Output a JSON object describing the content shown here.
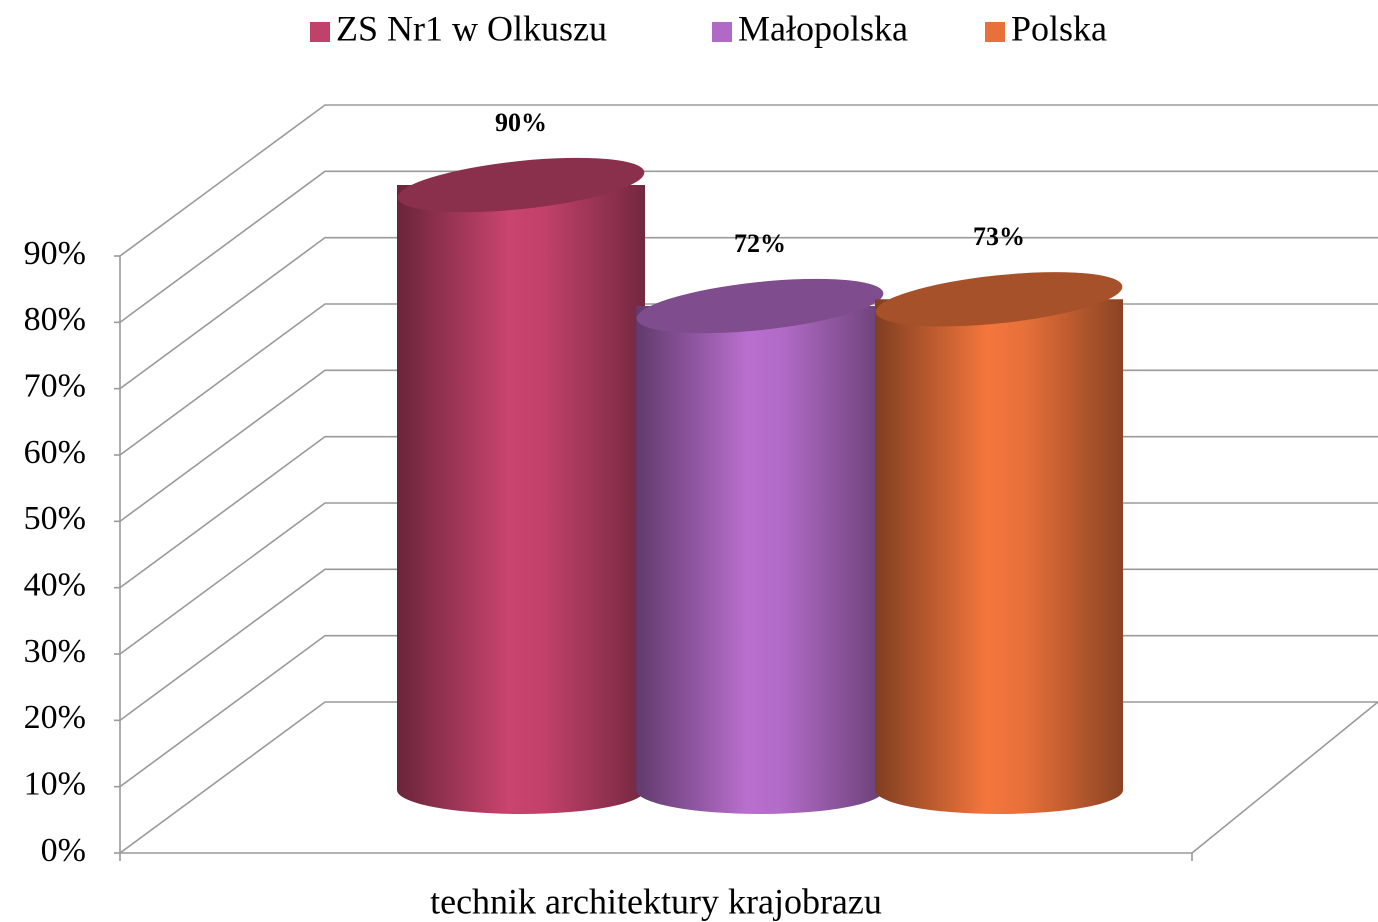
{
  "chart_data": {
    "type": "bar3d-cylinder",
    "categories": [
      "technik architektury krajobrazu"
    ],
    "series": [
      {
        "name": "ZS Nr1 w Olkuszu",
        "color": "#c0416a",
        "values": [
          90
        ],
        "value_labels": [
          "90%"
        ]
      },
      {
        "name": "Małopolska",
        "color": "#b06ac5",
        "values": [
          72
        ],
        "value_labels": [
          "72%"
        ]
      },
      {
        "name": "Polska",
        "color": "#e8703a",
        "values": [
          73
        ],
        "value_labels": [
          "73%"
        ]
      }
    ],
    "ylim": [
      0,
      90
    ],
    "yticks": [
      {
        "value": 0,
        "label": "0%"
      },
      {
        "value": 10,
        "label": "10%"
      },
      {
        "value": 20,
        "label": "20%"
      },
      {
        "value": 30,
        "label": "30%"
      },
      {
        "value": 40,
        "label": "40%"
      },
      {
        "value": 50,
        "label": "50%"
      },
      {
        "value": 60,
        "label": "60%"
      },
      {
        "value": 70,
        "label": "70%"
      },
      {
        "value": 80,
        "label": "80%"
      },
      {
        "value": 90,
        "label": "90%"
      }
    ],
    "grid": true,
    "legend": "top"
  }
}
